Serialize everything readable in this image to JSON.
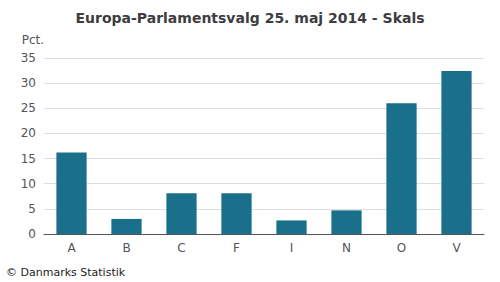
{
  "chart_data": {
    "type": "bar",
    "title": "Europa-Parlamentsvalg 25. maj 2014 - Skals",
    "categories": [
      "A",
      "B",
      "C",
      "F",
      "I",
      "N",
      "O",
      "V"
    ],
    "values": [
      16.2,
      3.0,
      8.1,
      8.1,
      2.7,
      4.7,
      26.0,
      32.4
    ],
    "color": "#1a6f8a",
    "ylabel": "Pct.",
    "ylim": [
      0,
      35
    ],
    "yticks": [
      0,
      5,
      10,
      15,
      20,
      25,
      30,
      35
    ],
    "grid": true,
    "annotations": [
      "© Danmarks Statistik"
    ]
  }
}
